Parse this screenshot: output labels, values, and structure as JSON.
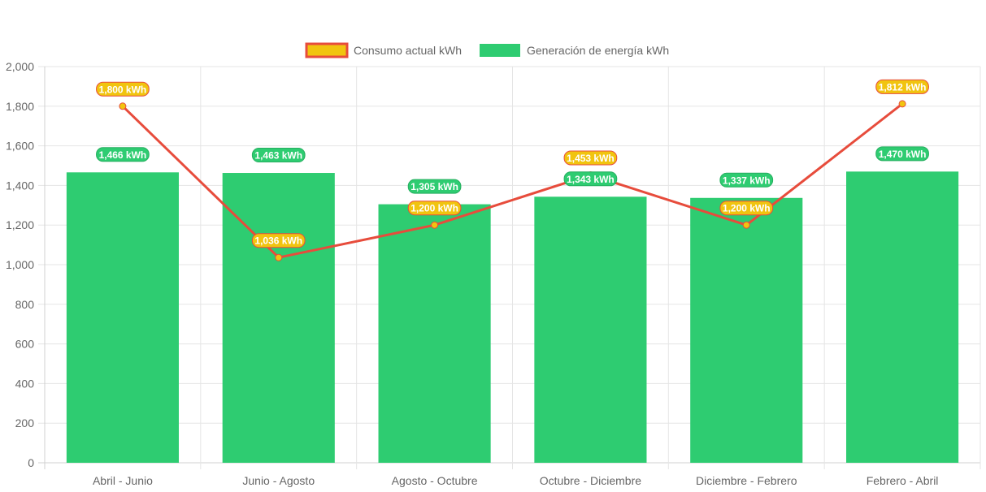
{
  "chart_data": {
    "type": "bar",
    "title": "",
    "xlabel": "",
    "ylabel": "",
    "ylim": [
      0,
      2000
    ],
    "y_ticks": [
      0,
      200,
      400,
      600,
      800,
      1000,
      1200,
      1400,
      1600,
      1800,
      2000
    ],
    "grid": true,
    "legend_position": "top-center",
    "categories": [
      "Abril - Junio",
      "Junio - Agosto",
      "Agosto - Octubre",
      "Octubre - Diciembre",
      "Diciembre - Febrero",
      "Febrero - Abril"
    ],
    "series": [
      {
        "name": "Consumo actual kWh",
        "type": "line",
        "values": [
          1800,
          1036,
          1200,
          1453,
          1200,
          1812
        ],
        "labels": [
          "1,800 kWh",
          "1,036 kWh",
          "1,200 kWh",
          "1,453 kWh",
          "1,200 kWh",
          "1,812 kWh"
        ],
        "color": "#e74c3c",
        "fill_color": "#f1c40f"
      },
      {
        "name": "Generación de energía kWh",
        "type": "bar",
        "values": [
          1466,
          1463,
          1305,
          1343,
          1337,
          1470
        ],
        "labels": [
          "1,466 kWh",
          "1,463 kWh",
          "1,305 kWh",
          "1,343 kWh",
          "1,337 kWh",
          "1,470 kWh"
        ],
        "color": "#2ecc71",
        "fill_color": "#2ecc71"
      }
    ]
  }
}
